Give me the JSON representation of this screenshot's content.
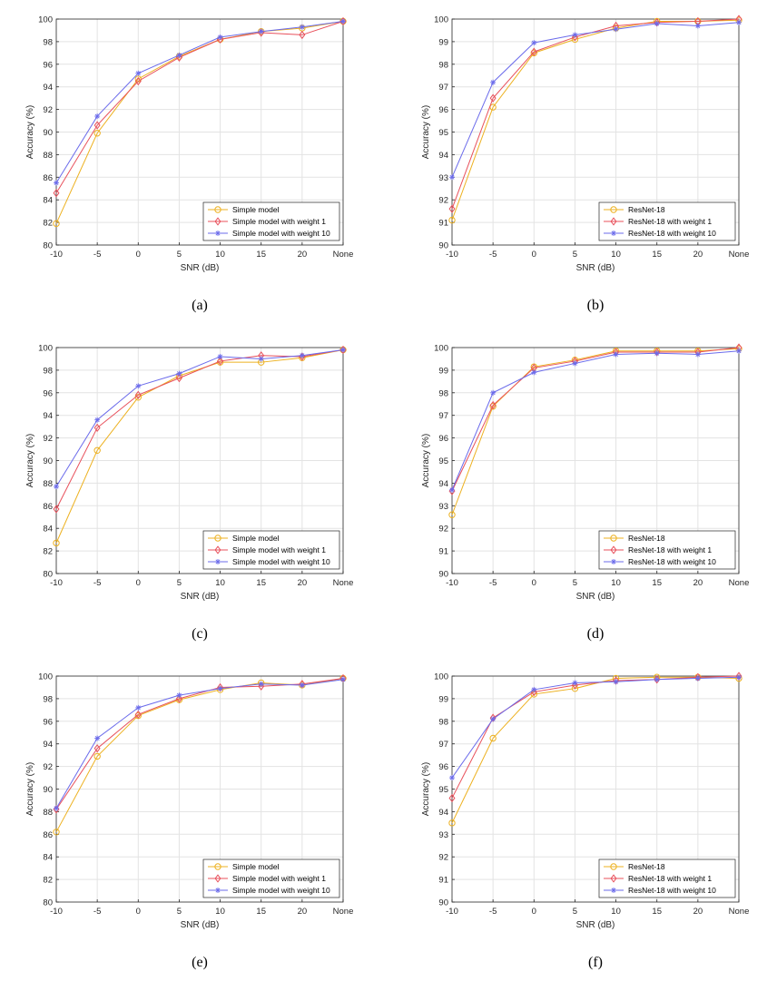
{
  "x_axis_label": "SNR (dB)",
  "y_axis_label": "Accuracy (%)",
  "colors": {
    "series_1": "#EDB120",
    "series_2": "#E8505B",
    "series_3": "#6B6BEB"
  },
  "chart_data": [
    {
      "type": "line",
      "caption": "(a)",
      "categories": [
        "-10",
        "-5",
        "0",
        "5",
        "10",
        "15",
        "20",
        "None"
      ],
      "xlabel": "SNR (dB)",
      "ylabel": "Accuracy (%)",
      "ylim": [
        80,
        100
      ],
      "yticks": [
        80,
        82,
        84,
        86,
        88,
        90,
        92,
        94,
        96,
        98,
        100
      ],
      "grid": true,
      "legend_position": "bottom-right",
      "series": [
        {
          "name": "Simple model",
          "marker": "circle",
          "values": [
            81.9,
            89.9,
            94.7,
            96.7,
            98.2,
            98.9,
            99.2,
            99.8
          ]
        },
        {
          "name": "Simple model with weight 1",
          "marker": "diamond",
          "values": [
            84.6,
            90.6,
            94.5,
            96.6,
            98.2,
            98.8,
            98.6,
            99.8
          ]
        },
        {
          "name": "Simple model with weight 10",
          "marker": "asterisk",
          "values": [
            85.5,
            91.4,
            95.2,
            96.8,
            98.4,
            98.9,
            99.3,
            99.8
          ]
        }
      ]
    },
    {
      "type": "line",
      "caption": "(b)",
      "categories": [
        "-10",
        "-5",
        "0",
        "5",
        "10",
        "15",
        "20",
        "None"
      ],
      "xlabel": "SNR (dB)",
      "ylabel": "Accuracy (%)",
      "ylim": [
        90,
        100
      ],
      "yticks": [
        90,
        91,
        92,
        93,
        94,
        95,
        96,
        97,
        98,
        99,
        100
      ],
      "grid": true,
      "legend_position": "bottom-right",
      "series": [
        {
          "name": "ResNet-18",
          "marker": "circle",
          "values": [
            91.1,
            96.1,
            98.5,
            99.1,
            99.6,
            99.9,
            99.9,
            99.95
          ]
        },
        {
          "name": "ResNet-18 with weight 1",
          "marker": "diamond",
          "values": [
            91.6,
            96.5,
            98.55,
            99.2,
            99.7,
            99.85,
            99.9,
            100
          ]
        },
        {
          "name": "ResNet-18 with weight 10",
          "marker": "asterisk",
          "values": [
            93.0,
            97.2,
            98.95,
            99.3,
            99.55,
            99.8,
            99.7,
            99.85
          ]
        }
      ]
    },
    {
      "type": "line",
      "caption": "(c)",
      "categories": [
        "-10",
        "-5",
        "0",
        "5",
        "10",
        "15",
        "20",
        "None"
      ],
      "xlabel": "SNR (dB)",
      "ylabel": "Accuracy (%)",
      "ylim": [
        80,
        100
      ],
      "yticks": [
        80,
        82,
        84,
        86,
        88,
        90,
        92,
        94,
        96,
        98,
        100
      ],
      "grid": true,
      "legend_position": "bottom-right",
      "series": [
        {
          "name": "Simple model",
          "marker": "circle",
          "values": [
            82.7,
            90.9,
            95.6,
            97.5,
            98.7,
            98.7,
            99.1,
            99.8
          ]
        },
        {
          "name": "Simple model with weight 1",
          "marker": "diamond",
          "values": [
            85.7,
            92.9,
            95.8,
            97.3,
            98.8,
            99.3,
            99.2,
            99.8
          ]
        },
        {
          "name": "Simple model with weight 10",
          "marker": "asterisk",
          "values": [
            87.7,
            93.6,
            96.6,
            97.7,
            99.2,
            99.0,
            99.3,
            99.8
          ]
        }
      ]
    },
    {
      "type": "line",
      "caption": "(d)",
      "categories": [
        "-10",
        "-5",
        "0",
        "5",
        "10",
        "15",
        "20",
        "None"
      ],
      "xlabel": "SNR (dB)",
      "ylabel": "Accuracy (%)",
      "ylim": [
        90,
        100
      ],
      "yticks": [
        90,
        91,
        92,
        93,
        94,
        95,
        96,
        97,
        98,
        99,
        100
      ],
      "grid": true,
      "legend_position": "bottom-right",
      "series": [
        {
          "name": "ResNet-18",
          "marker": "circle",
          "values": [
            92.6,
            97.4,
            99.15,
            99.45,
            99.85,
            99.85,
            99.85,
            99.95
          ]
        },
        {
          "name": "ResNet-18 with weight 1",
          "marker": "diamond",
          "values": [
            93.65,
            97.45,
            99.1,
            99.4,
            99.8,
            99.8,
            99.8,
            100
          ]
        },
        {
          "name": "ResNet-18 with weight 10",
          "marker": "asterisk",
          "values": [
            93.7,
            98.0,
            98.9,
            99.3,
            99.7,
            99.75,
            99.7,
            99.85
          ]
        }
      ]
    },
    {
      "type": "line",
      "caption": "(e)",
      "categories": [
        "-10",
        "-5",
        "0",
        "5",
        "10",
        "15",
        "20",
        "None"
      ],
      "xlabel": "SNR (dB)",
      "ylabel": "Accuracy (%)",
      "ylim": [
        80,
        100
      ],
      "yticks": [
        80,
        82,
        84,
        86,
        88,
        90,
        92,
        94,
        96,
        98,
        100
      ],
      "grid": true,
      "legend_position": "bottom-right",
      "series": [
        {
          "name": "Simple model",
          "marker": "circle",
          "values": [
            86.2,
            92.9,
            96.5,
            97.9,
            98.8,
            99.4,
            99.2,
            99.8
          ]
        },
        {
          "name": "Simple model with weight 1",
          "marker": "diamond",
          "values": [
            88.2,
            93.6,
            96.6,
            98.0,
            99.0,
            99.1,
            99.3,
            99.8
          ]
        },
        {
          "name": "Simple model with weight 10",
          "marker": "asterisk",
          "values": [
            88.3,
            94.5,
            97.2,
            98.3,
            98.9,
            99.3,
            99.2,
            99.7
          ]
        }
      ]
    },
    {
      "type": "line",
      "caption": "(f)",
      "categories": [
        "-10",
        "-5",
        "0",
        "5",
        "10",
        "15",
        "20",
        "None"
      ],
      "xlabel": "SNR (dB)",
      "ylabel": "Accuracy (%)",
      "ylim": [
        90,
        100
      ],
      "yticks": [
        90,
        91,
        92,
        93,
        94,
        95,
        96,
        97,
        98,
        99,
        100
      ],
      "grid": true,
      "legend_position": "bottom-right",
      "series": [
        {
          "name": "ResNet-18",
          "marker": "circle",
          "values": [
            93.5,
            97.25,
            99.2,
            99.45,
            99.9,
            99.95,
            99.95,
            99.9
          ]
        },
        {
          "name": "ResNet-18 with weight 1",
          "marker": "diamond",
          "values": [
            94.6,
            98.15,
            99.3,
            99.6,
            99.8,
            99.85,
            99.95,
            100
          ]
        },
        {
          "name": "ResNet-18 with weight 10",
          "marker": "asterisk",
          "values": [
            95.5,
            98.1,
            99.4,
            99.7,
            99.75,
            99.85,
            99.9,
            99.95
          ]
        }
      ]
    }
  ]
}
